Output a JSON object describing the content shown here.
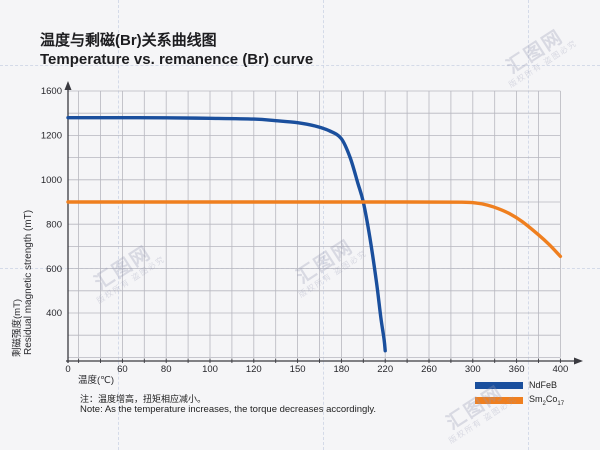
{
  "page": {
    "background": "#f5f5f7"
  },
  "title": {
    "zh": "温度与剩磁(Br)关系曲线图",
    "en": "Temperature vs. remanence (Br) curve"
  },
  "axes": {
    "x_label": "温度(℃)",
    "y_label_zh": "剩磁强度(mT)",
    "y_label_en": "Residual magnetic strength (mT)"
  },
  "note": {
    "zh": "注：温度增高，扭矩相应减小。",
    "en": "Note: As the temperature increases, the torque decreases accordingly."
  },
  "watermark": {
    "brand": "汇图网",
    "notice": "版权所有 盗图必究"
  },
  "legend": [
    {
      "label": "NdFeB",
      "color": "#1a4f9d"
    },
    {
      "label": "Sm2Co17",
      "pre": "Sm",
      "sub1": "2",
      "mid": "Co",
      "sub2": "17",
      "color": "#ef7f1f"
    }
  ],
  "chart_data": {
    "type": "line",
    "title": "Temperature vs. remanence (Br) curve / 温度与剩磁(Br)关系曲线图",
    "xlabel": "温度(℃)",
    "ylabel": "剩磁强度(mT) / Residual magnetic strength (mT)",
    "x_ticks": [
      0,
      60,
      80,
      100,
      120,
      150,
      180,
      220,
      260,
      300,
      360,
      400
    ],
    "y_ticks": [
      1600,
      1200,
      1000,
      800,
      600,
      400
    ],
    "grid": true,
    "ticks_evenly_spaced": true,
    "legend_position": "bottom-right",
    "series": [
      {
        "name": "NdFeB",
        "color": "#1a4f9d",
        "points": [
          [
            0,
            1360
          ],
          [
            40,
            1360
          ],
          [
            80,
            1358
          ],
          [
            100,
            1354
          ],
          [
            120,
            1347
          ],
          [
            135,
            1333
          ],
          [
            150,
            1315
          ],
          [
            162,
            1285
          ],
          [
            172,
            1240
          ],
          [
            180,
            1185
          ],
          [
            188,
            1100
          ],
          [
            195,
            985
          ],
          [
            200,
            900
          ],
          [
            206,
            740
          ],
          [
            212,
            540
          ],
          [
            216,
            360
          ],
          [
            219,
            160
          ],
          [
            220,
            60
          ]
        ]
      },
      {
        "name": "Sm2Co17",
        "color": "#ef7f1f",
        "points": [
          [
            0,
            900
          ],
          [
            60,
            900
          ],
          [
            150,
            900
          ],
          [
            240,
            900
          ],
          [
            290,
            899
          ],
          [
            305,
            895
          ],
          [
            320,
            886
          ],
          [
            335,
            870
          ],
          [
            350,
            848
          ],
          [
            365,
            812
          ],
          [
            380,
            752
          ],
          [
            390,
            707
          ],
          [
            400,
            655
          ]
        ]
      }
    ]
  }
}
